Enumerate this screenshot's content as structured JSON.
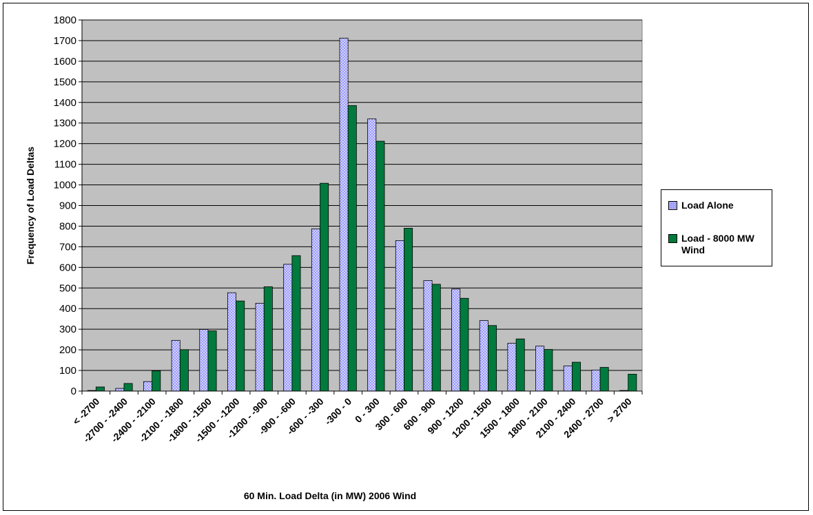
{
  "chart_data": {
    "type": "bar",
    "title": "",
    "xlabel": "60 Min. Load Delta (in MW) 2006 Wind",
    "ylabel": "Frequency of Load Deltas",
    "ylim": [
      0,
      1800
    ],
    "ytick_step": 100,
    "grid": true,
    "legend_position": "right",
    "plot_background": "#c0c0c0",
    "categories": [
      "< -2700",
      "-2700 - -2400",
      "-2400 - -2100",
      "-2100 - -1800",
      "-1800 - -1500",
      "-1500 - -1200",
      "-1200 - -900",
      "-900 - -600",
      "-600 - -300",
      "-300 - 0",
      "0 - 300",
      "300 - 600",
      "600 - 900",
      "900 - 1200",
      "1200 - 1500",
      "1500 - 1800",
      "1800 - 2100",
      "2100 - 2400",
      "2400 - 2700",
      "> 2700"
    ],
    "series": [
      {
        "name": "Load Alone",
        "color": "#9999ff",
        "values": [
          3,
          13,
          46,
          246,
          299,
          477,
          426,
          615,
          787,
          1712,
          1320,
          730,
          536,
          495,
          342,
          232,
          218,
          122,
          102,
          3
        ]
      },
      {
        "name": "Load - 8000 MW Wind",
        "color": "#007a3d",
        "values": [
          20,
          37,
          98,
          201,
          292,
          437,
          506,
          657,
          1008,
          1385,
          1212,
          790,
          518,
          450,
          318,
          253,
          202,
          140,
          115,
          82
        ]
      }
    ]
  }
}
